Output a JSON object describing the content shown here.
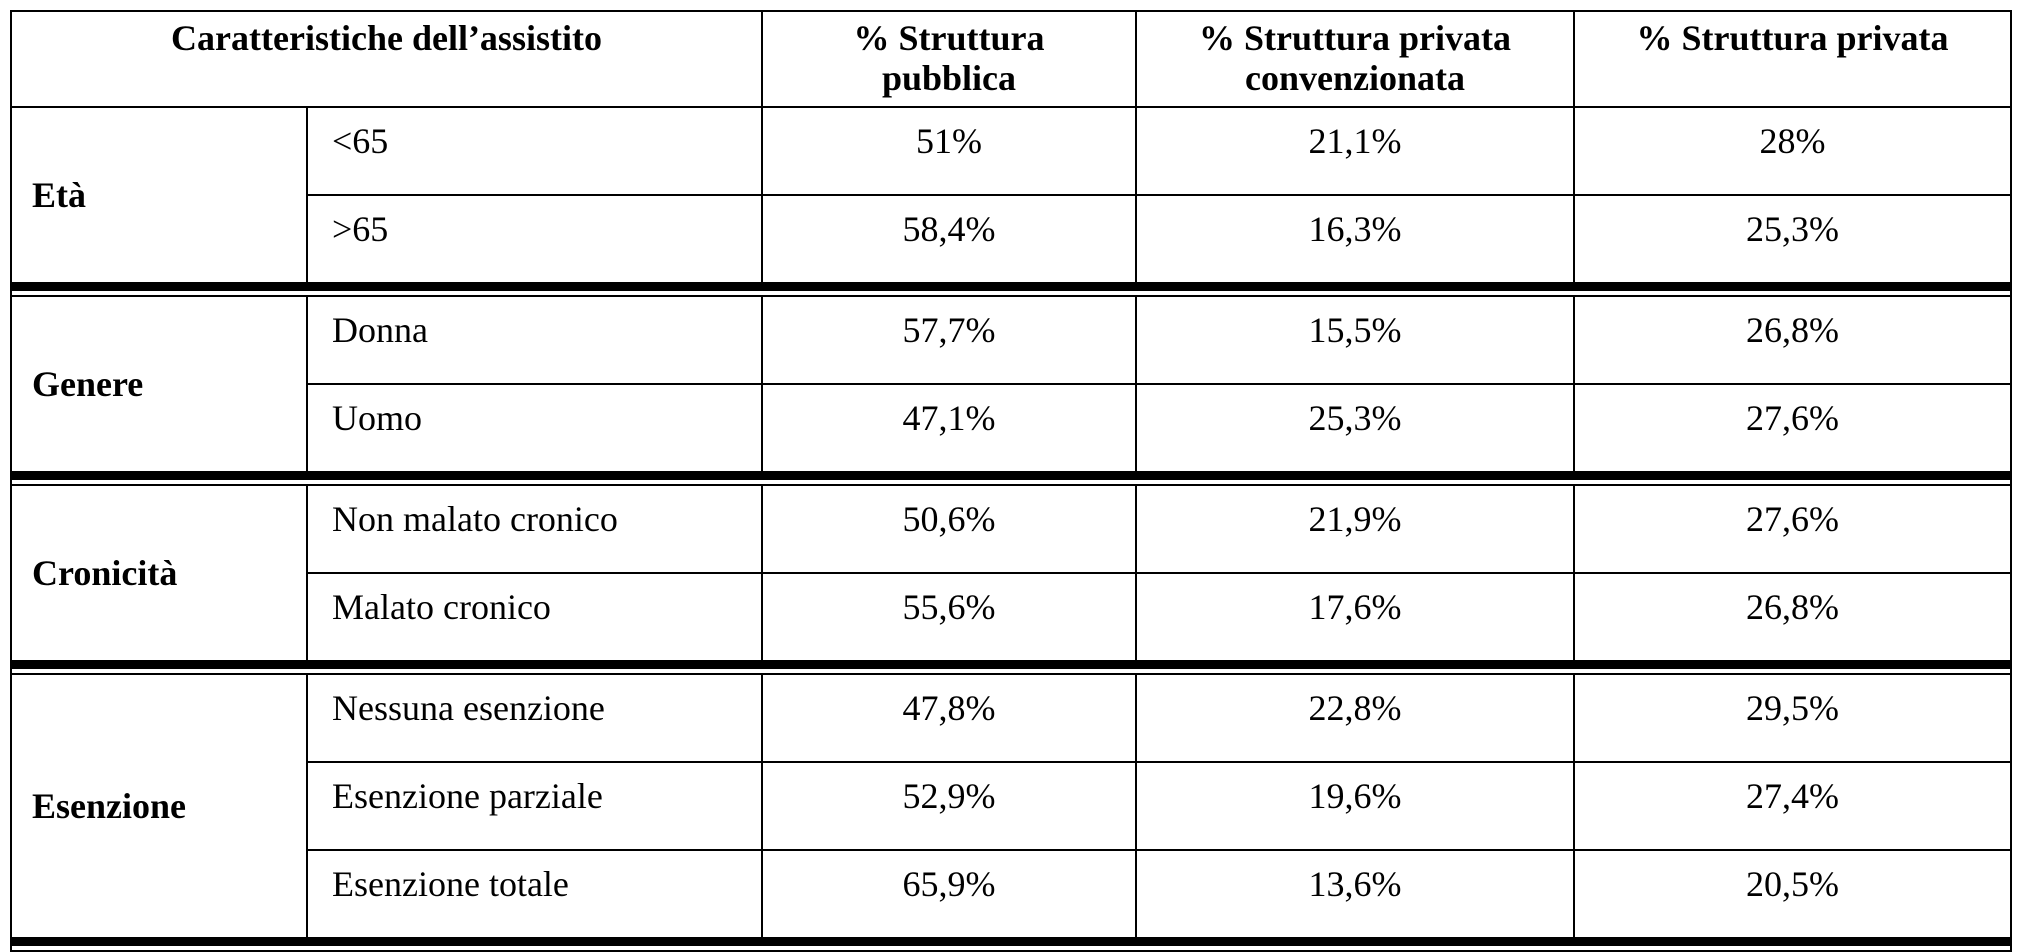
{
  "table": {
    "header": [
      "Caratteristiche dell’assistito",
      "% Struttura pubblica",
      "% Struttura privata convenzionata",
      "% Struttura privata"
    ],
    "groups": [
      {
        "label": "Età",
        "rows": [
          {
            "label": "<65",
            "values": [
              "51%",
              "21,1%",
              "28%"
            ]
          },
          {
            "label": ">65",
            "values": [
              "58,4%",
              "16,3%",
              "25,3%"
            ]
          }
        ]
      },
      {
        "label": "Genere",
        "rows": [
          {
            "label": "Donna",
            "values": [
              "57,7%",
              "15,5%",
              "26,8%"
            ]
          },
          {
            "label": "Uomo",
            "values": [
              "47,1%",
              "25,3%",
              "27,6%"
            ]
          }
        ]
      },
      {
        "label": "Cronicità",
        "rows": [
          {
            "label": "Non malato cronico",
            "values": [
              "50,6%",
              "21,9%",
              "27,6%"
            ]
          },
          {
            "label": "Malato cronico",
            "values": [
              "55,6%",
              "17,6%",
              "26,8%"
            ]
          }
        ]
      },
      {
        "label": "Esenzione",
        "rows": [
          {
            "label": "Nessuna  esenzione",
            "values": [
              "47,8%",
              "22,8%",
              "29,5%"
            ]
          },
          {
            "label": "Esenzione parziale",
            "values": [
              "52,9%",
              "19,6%",
              "27,4%"
            ]
          },
          {
            "label": "Esenzione totale",
            "values": [
              "65,9%",
              "13,6%",
              "20,5%"
            ]
          }
        ]
      }
    ]
  }
}
